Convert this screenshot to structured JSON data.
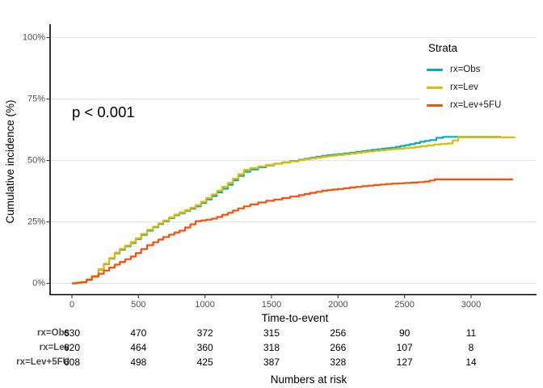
{
  "colors": {
    "obs": "#00AFBB",
    "lev": "#E7B800",
    "lev5fu": "#FC4E07",
    "grid": "#E5E5E5",
    "axis": "#000000",
    "tick_label": "#4D4D4D"
  },
  "legend": {
    "title": "Strata",
    "items": [
      {
        "label": "rx=Obs",
        "color": "#00AFBB"
      },
      {
        "label": "rx=Lev",
        "color": "#E7B800"
      },
      {
        "label": "rx=Lev+5FU",
        "color": "#FC4E07"
      }
    ]
  },
  "chart_data": {
    "type": "line",
    "subtype": "cumulative-incidence-step",
    "title": "",
    "annotation": "p < 0.001",
    "xlabel": "Time-to-event",
    "ylabel": "Cumulative incidence (%)",
    "xlim": [
      0,
      3330
    ],
    "ylim": [
      0,
      100
    ],
    "x_ticks": [
      0,
      500,
      1000,
      1500,
      2000,
      2500,
      3000
    ],
    "y_tick_values": [
      0,
      25,
      50,
      75,
      100
    ],
    "y_tick_labels": [
      "0%",
      "25%",
      "50%",
      "75%",
      "100%"
    ],
    "grid": "horizontal",
    "legend_position": "top-right",
    "series": [
      {
        "name": "rx=Obs",
        "color": "#00AFBB",
        "points": [
          [
            0,
            0
          ],
          [
            70,
            0.4
          ],
          [
            110,
            1.3
          ],
          [
            150,
            2.8
          ],
          [
            200,
            5.6
          ],
          [
            240,
            7.8
          ],
          [
            280,
            10.1
          ],
          [
            322,
            12.2
          ],
          [
            360,
            13.7
          ],
          [
            400,
            15.1
          ],
          [
            443,
            16.4
          ],
          [
            480,
            18
          ],
          [
            520,
            19.7
          ],
          [
            565,
            21.4
          ],
          [
            610,
            22.8
          ],
          [
            650,
            24.1
          ],
          [
            686,
            25.3
          ],
          [
            730,
            26.5
          ],
          [
            770,
            27.7
          ],
          [
            808,
            28.6
          ],
          [
            850,
            29.5
          ],
          [
            890,
            30.4
          ],
          [
            929,
            31.3
          ],
          [
            970,
            32.7
          ],
          [
            1010,
            34.1
          ],
          [
            1051,
            35.5
          ],
          [
            1090,
            37
          ],
          [
            1130,
            38.5
          ],
          [
            1172,
            40.1
          ],
          [
            1210,
            41.9
          ],
          [
            1250,
            43.7
          ],
          [
            1293,
            45.4
          ],
          [
            1340,
            46.3
          ],
          [
            1400,
            47.2
          ],
          [
            1460,
            48
          ],
          [
            1520,
            48.7
          ],
          [
            1580,
            49.2
          ],
          [
            1640,
            49.8
          ],
          [
            1706,
            50.3
          ],
          [
            1790,
            51.1
          ],
          [
            1880,
            51.9
          ],
          [
            1998,
            52.6
          ],
          [
            2090,
            53.2
          ],
          [
            2180,
            53.8
          ],
          [
            2253,
            54.3
          ],
          [
            2330,
            54.8
          ],
          [
            2400,
            55.2
          ],
          [
            2470,
            55.9
          ],
          [
            2540,
            56.6
          ],
          [
            2617,
            57.6
          ],
          [
            2690,
            58.3
          ],
          [
            2739,
            59.2
          ],
          [
            2790,
            59.6
          ],
          [
            3225,
            59.6
          ]
        ]
      },
      {
        "name": "rx=Lev",
        "color": "#E7B800",
        "points": [
          [
            0,
            0
          ],
          [
            70,
            0.4
          ],
          [
            110,
            1.4
          ],
          [
            150,
            3
          ],
          [
            200,
            5.8
          ],
          [
            240,
            8
          ],
          [
            280,
            10.3
          ],
          [
            322,
            12.5
          ],
          [
            360,
            14
          ],
          [
            400,
            15.4
          ],
          [
            443,
            16.8
          ],
          [
            480,
            18.4
          ],
          [
            520,
            20.1
          ],
          [
            565,
            21.8
          ],
          [
            610,
            23.1
          ],
          [
            650,
            24.4
          ],
          [
            686,
            25.6
          ],
          [
            730,
            26.8
          ],
          [
            770,
            28
          ],
          [
            808,
            28.9
          ],
          [
            850,
            29.8
          ],
          [
            890,
            30.8
          ],
          [
            929,
            31.8
          ],
          [
            970,
            33.2
          ],
          [
            1010,
            34.7
          ],
          [
            1051,
            36.2
          ],
          [
            1090,
            37.7
          ],
          [
            1130,
            39.3
          ],
          [
            1172,
            40.9
          ],
          [
            1210,
            42.6
          ],
          [
            1250,
            44.4
          ],
          [
            1293,
            46.2
          ],
          [
            1340,
            46.9
          ],
          [
            1400,
            47.6
          ],
          [
            1460,
            48.2
          ],
          [
            1520,
            48.7
          ],
          [
            1580,
            49.1
          ],
          [
            1640,
            49.6
          ],
          [
            1706,
            50.1
          ],
          [
            1790,
            50.8
          ],
          [
            1880,
            51.5
          ],
          [
            1998,
            52.2
          ],
          [
            2090,
            52.8
          ],
          [
            2180,
            53.4
          ],
          [
            2270,
            53.9
          ],
          [
            2360,
            54.4
          ],
          [
            2450,
            54.8
          ],
          [
            2540,
            55.2
          ],
          [
            2620,
            55.8
          ],
          [
            2721,
            56.5
          ],
          [
            2820,
            56.9
          ],
          [
            2903,
            59.4
          ],
          [
            3330,
            59.4
          ]
        ]
      },
      {
        "name": "rx=Lev+5FU",
        "color": "#FC4E07",
        "points": [
          [
            0,
            0
          ],
          [
            70,
            0.5
          ],
          [
            110,
            1.5
          ],
          [
            150,
            2.7
          ],
          [
            200,
            3.9
          ],
          [
            240,
            5.2
          ],
          [
            280,
            6.4
          ],
          [
            322,
            7.6
          ],
          [
            360,
            8.7
          ],
          [
            400,
            9.8
          ],
          [
            443,
            10.9
          ],
          [
            480,
            12.3
          ],
          [
            520,
            13.9
          ],
          [
            565,
            15.5
          ],
          [
            610,
            16.7
          ],
          [
            650,
            17.8
          ],
          [
            686,
            18.8
          ],
          [
            730,
            19.8
          ],
          [
            770,
            20.7
          ],
          [
            808,
            21.4
          ],
          [
            850,
            22.7
          ],
          [
            890,
            24
          ],
          [
            929,
            25.3
          ],
          [
            970,
            25.6
          ],
          [
            1010,
            25.9
          ],
          [
            1051,
            26.3
          ],
          [
            1090,
            27
          ],
          [
            1130,
            27.9
          ],
          [
            1172,
            28.7
          ],
          [
            1210,
            29.6
          ],
          [
            1250,
            30.5
          ],
          [
            1293,
            31.3
          ],
          [
            1340,
            32.1
          ],
          [
            1400,
            32.9
          ],
          [
            1460,
            33.6
          ],
          [
            1520,
            34.1
          ],
          [
            1580,
            34.7
          ],
          [
            1640,
            35.3
          ],
          [
            1706,
            35.9
          ],
          [
            1790,
            36.8
          ],
          [
            1880,
            37.7
          ],
          [
            1998,
            38.4
          ],
          [
            2090,
            39
          ],
          [
            2180,
            39.5
          ],
          [
            2270,
            40
          ],
          [
            2360,
            40.4
          ],
          [
            2450,
            40.7
          ],
          [
            2550,
            41
          ],
          [
            2650,
            41.4
          ],
          [
            2727,
            42.3
          ],
          [
            3315,
            42.3
          ]
        ]
      }
    ]
  },
  "risk_table": {
    "title": "Numbers at risk",
    "time_points": [
      0,
      500,
      1000,
      1500,
      2000,
      2500,
      3000
    ],
    "rows": [
      {
        "label": "rx=Obs",
        "values": [
          "630",
          "470",
          "372",
          "315",
          "256",
          "90",
          "11"
        ]
      },
      {
        "label": "rx=Lev",
        "values": [
          "620",
          "464",
          "360",
          "318",
          "266",
          "107",
          "8"
        ]
      },
      {
        "label": "rx=Lev+5FU",
        "values": [
          "608",
          "498",
          "425",
          "387",
          "328",
          "127",
          "14"
        ]
      }
    ]
  }
}
